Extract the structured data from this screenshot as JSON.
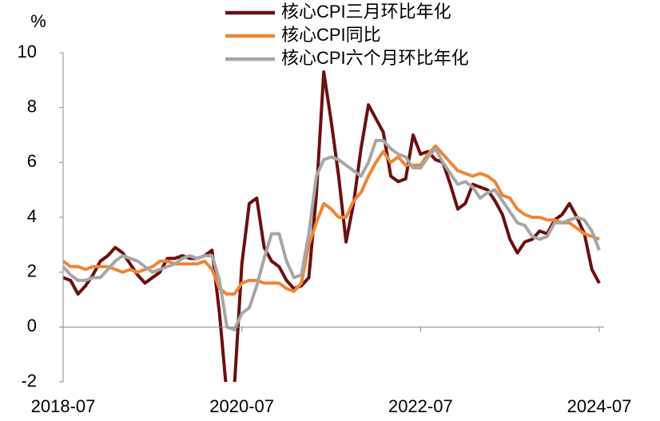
{
  "chart_data": {
    "type": "line",
    "y_unit": "%",
    "categories": [
      "2018-07",
      null,
      null,
      null,
      null,
      null,
      null,
      null,
      null,
      null,
      null,
      null,
      null,
      null,
      null,
      null,
      null,
      null,
      null,
      null,
      null,
      null,
      null,
      null,
      "2020-07",
      null,
      null,
      null,
      null,
      null,
      null,
      null,
      null,
      null,
      null,
      null,
      null,
      null,
      null,
      null,
      null,
      null,
      null,
      null,
      null,
      null,
      null,
      null,
      "2022-07",
      null,
      null,
      null,
      null,
      null,
      null,
      null,
      null,
      null,
      null,
      null,
      null,
      null,
      null,
      null,
      null,
      null,
      null,
      null,
      null,
      null,
      null,
      null,
      "2024-07"
    ],
    "series": [
      {
        "name": "核心CPI三月环比年化",
        "color": "#6b0f0f",
        "values": [
          1.8,
          1.7,
          1.2,
          1.5,
          1.9,
          2.4,
          2.6,
          2.9,
          2.7,
          2.3,
          1.9,
          1.6,
          1.8,
          2.0,
          2.5,
          2.5,
          2.6,
          2.5,
          2.5,
          2.6,
          2.8,
          0.5,
          -2.5,
          -2.2,
          2.3,
          4.5,
          4.7,
          2.9,
          2.4,
          2.2,
          1.7,
          1.4,
          1.5,
          1.8,
          4.8,
          9.3,
          7.5,
          5.5,
          3.1,
          4.5,
          6.5,
          8.1,
          7.6,
          7.1,
          5.5,
          5.3,
          5.4,
          7.0,
          6.3,
          6.4,
          6.1,
          6.0,
          5.2,
          4.3,
          4.5,
          5.2,
          5.1,
          5.0,
          4.6,
          4.1,
          3.2,
          2.7,
          3.1,
          3.2,
          3.5,
          3.4,
          3.9,
          4.1,
          4.5,
          4.0,
          3.4,
          2.1,
          1.6
        ]
      },
      {
        "name": "核心CPI同比",
        "color": "#ef8535",
        "values": [
          2.4,
          2.2,
          2.2,
          2.1,
          2.2,
          2.2,
          2.2,
          2.1,
          2.0,
          2.1,
          2.0,
          2.1,
          2.2,
          2.4,
          2.4,
          2.3,
          2.3,
          2.3,
          2.3,
          2.4,
          2.1,
          1.4,
          1.2,
          1.2,
          1.6,
          1.7,
          1.7,
          1.6,
          1.6,
          1.6,
          1.4,
          1.3,
          1.6,
          3.0,
          3.8,
          4.5,
          4.3,
          4.0,
          4.0,
          4.6,
          4.9,
          5.5,
          6.0,
          6.4,
          6.0,
          6.2,
          5.9,
          5.9,
          5.9,
          6.3,
          6.6,
          6.3,
          6.0,
          5.7,
          5.6,
          5.5,
          5.6,
          5.5,
          5.3,
          4.8,
          4.7,
          4.3,
          4.1,
          4.0,
          4.0,
          3.9,
          3.9,
          3.8,
          3.8,
          3.6,
          3.4,
          3.3,
          3.2
        ]
      },
      {
        "name": "核心CPI六个月环比年化",
        "color": "#a6a6a6",
        "values": [
          2.2,
          1.9,
          1.7,
          1.7,
          1.8,
          1.8,
          2.1,
          2.4,
          2.6,
          2.5,
          2.4,
          2.2,
          2.0,
          2.1,
          2.2,
          2.3,
          2.5,
          2.6,
          2.5,
          2.6,
          2.6,
          1.7,
          0.0,
          -0.1,
          0.5,
          0.7,
          1.5,
          2.5,
          3.4,
          3.4,
          2.4,
          1.8,
          1.9,
          3.4,
          5.5,
          6.1,
          6.2,
          6.1,
          5.9,
          5.7,
          5.5,
          6.0,
          6.8,
          6.8,
          6.5,
          6.3,
          6.2,
          5.8,
          5.8,
          6.2,
          6.5,
          6.0,
          5.6,
          5.2,
          5.3,
          5.1,
          4.7,
          4.9,
          5.0,
          4.6,
          4.2,
          3.8,
          3.7,
          3.3,
          3.2,
          3.3,
          3.8,
          3.8,
          3.9,
          4.0,
          3.9,
          3.5,
          2.8
        ]
      }
    ],
    "ylim": [
      -2,
      10
    ],
    "yticks": [
      -2,
      0,
      2,
      4,
      6,
      8,
      10
    ],
    "grid": false
  }
}
